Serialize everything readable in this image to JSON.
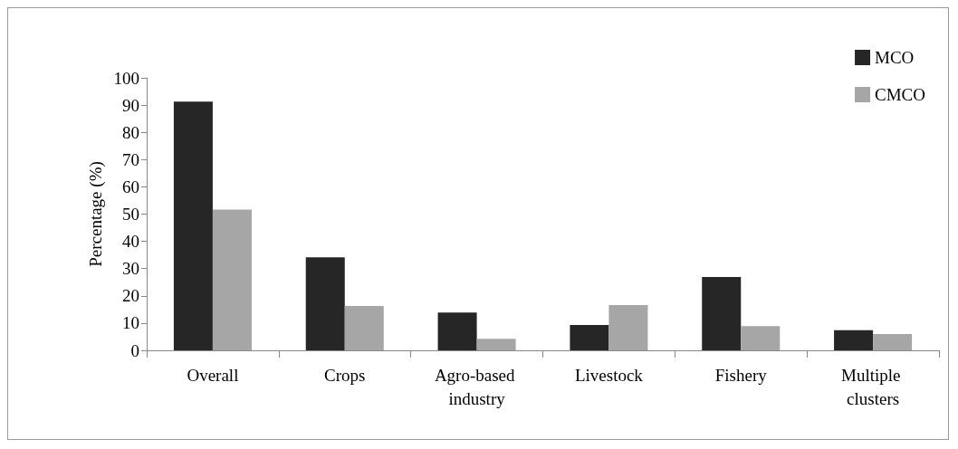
{
  "chart_data": {
    "type": "bar",
    "ylabel": "Percentage (%)",
    "categories": [
      "Overall",
      "Crops",
      "Agro-based industry",
      "Livestock",
      "Fishery",
      "Multiple clusters"
    ],
    "series": [
      {
        "name": "MCO",
        "color": "#262626",
        "values": [
          91.3,
          34.1,
          13.9,
          9.3,
          26.9,
          7.4
        ]
      },
      {
        "name": "CMCO",
        "color": "#a6a6a6",
        "values": [
          51.7,
          16.3,
          4.2,
          16.6,
          8.9,
          6.0
        ]
      }
    ],
    "ylim": [
      0,
      100
    ],
    "yticks": [
      0,
      10,
      20,
      30,
      40,
      50,
      60,
      70,
      80,
      90,
      100
    ],
    "grid": false,
    "legend": "top right"
  }
}
